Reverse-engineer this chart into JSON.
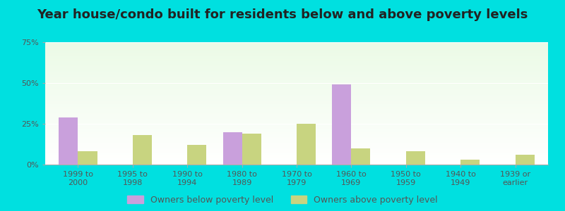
{
  "title": "Year house/condo built for residents below and above poverty levels",
  "categories": [
    "1999 to\n2000",
    "1995 to\n1998",
    "1990 to\n1994",
    "1980 to\n1989",
    "1970 to\n1979",
    "1960 to\n1969",
    "1950 to\n1959",
    "1940 to\n1949",
    "1939 or\nearlier"
  ],
  "below_poverty": [
    29,
    0,
    0,
    20,
    0,
    49,
    0,
    0,
    0
  ],
  "above_poverty": [
    8,
    18,
    12,
    19,
    25,
    10,
    8,
    3,
    6
  ],
  "below_color": "#c9a0dc",
  "above_color": "#c8d480",
  "ylim": [
    0,
    75
  ],
  "yticks": [
    0,
    25,
    50,
    75
  ],
  "ytick_labels": [
    "0%",
    "25%",
    "50%",
    "75%"
  ],
  "outer_bg": "#00e0e0",
  "bar_width": 0.35,
  "legend_below_label": "Owners below poverty level",
  "legend_above_label": "Owners above poverty level",
  "title_fontsize": 13,
  "tick_fontsize": 8
}
